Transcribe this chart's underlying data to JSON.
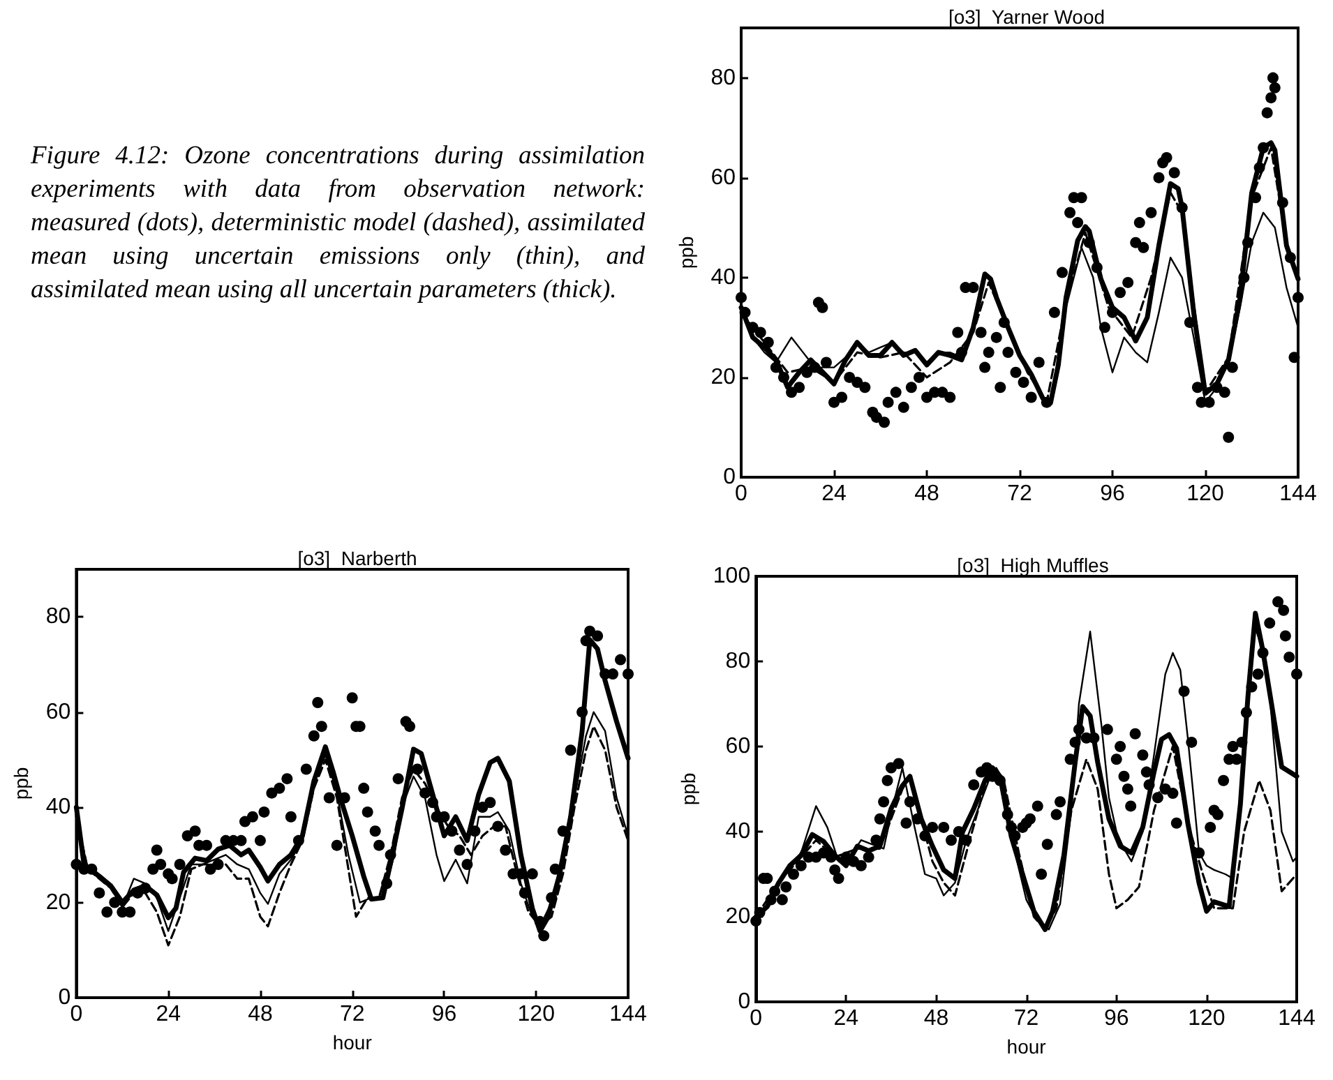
{
  "chart_data": [
    {
      "type": "line",
      "title": "[o3]  Yarner Wood",
      "ylabel": "ppb",
      "annotations": [
        "Figure 4.12: Ozone concentrations during assimilation experiments with data from observation network: measured (dots), deterministic model (dashed), assimilated mean using uncertain emissions only (thin), and assimilated mean using all uncertain parameters (thick)."
      ],
      "xlim": [
        0,
        144
      ],
      "xticks": [
        0,
        24,
        48,
        72,
        96,
        120,
        144
      ],
      "ylim": [
        0,
        90
      ],
      "yticks": [
        0,
        20,
        40,
        60,
        80
      ],
      "series": [
        {
          "type": "scatter",
          "marker": "circle",
          "color": "#000000",
          "x": [
            0,
            1,
            3,
            5,
            7,
            9,
            11,
            13,
            15,
            17,
            19,
            20,
            21,
            22,
            24,
            26,
            28,
            30,
            32,
            34,
            35,
            37,
            38,
            40,
            42,
            44,
            46,
            48,
            50,
            52,
            54,
            56,
            57,
            58,
            60,
            62,
            63,
            64,
            66,
            67,
            68,
            69,
            71,
            73,
            75,
            77,
            79,
            81,
            83,
            85,
            86,
            87,
            88,
            90,
            92,
            94,
            96,
            98,
            100,
            102,
            103,
            104,
            106,
            108,
            109,
            110,
            112,
            114,
            116,
            118,
            119,
            121,
            123,
            125,
            126,
            127,
            130,
            131,
            133,
            134,
            135,
            136,
            137,
            137.5,
            138,
            140,
            142,
            143,
            144
          ],
          "values": [
            36,
            33,
            30,
            29,
            27,
            22,
            20,
            17,
            18,
            21,
            22,
            35,
            34,
            23,
            15,
            16,
            20,
            19,
            18,
            13,
            12,
            11,
            15,
            17,
            14,
            18,
            20,
            16,
            17,
            17,
            16,
            29,
            25,
            38,
            38,
            29,
            22,
            25,
            28,
            18,
            31,
            25,
            21,
            19,
            16,
            23,
            15,
            33,
            41,
            53,
            56,
            51,
            56,
            47,
            42,
            30,
            33,
            37,
            39,
            47,
            51,
            46,
            53,
            60,
            63,
            64,
            61,
            54,
            31,
            18,
            15,
            15,
            18,
            17,
            8,
            22,
            40,
            47,
            56,
            62,
            66,
            73,
            76,
            80,
            78,
            55,
            44,
            24,
            36
          ]
        },
        {
          "type": "line",
          "line_style": "dashed",
          "color": "#000000",
          "x": [
            0,
            6,
            12,
            18,
            24,
            30,
            36,
            42,
            48,
            54,
            60,
            64,
            69,
            74,
            79,
            84,
            89,
            95,
            101,
            106,
            111,
            114,
            120,
            126,
            132,
            137,
            141,
            144
          ],
          "values": [
            33,
            27,
            21,
            22,
            19,
            25,
            24,
            25,
            20,
            23,
            29,
            39,
            30,
            21,
            15,
            35,
            49,
            34,
            28,
            40,
            57,
            53,
            17,
            24,
            56,
            66,
            47,
            40
          ]
        },
        {
          "type": "line",
          "color": "#000000",
          "x": [
            0,
            3,
            6,
            9,
            13,
            16,
            19,
            24,
            27,
            30,
            33,
            36,
            39,
            42,
            45,
            48,
            51,
            54,
            57,
            60,
            63,
            64.5,
            66,
            69,
            72,
            75,
            78,
            80,
            82,
            84,
            88,
            91,
            93,
            96,
            99,
            102,
            105,
            108,
            111,
            114,
            117,
            120,
            123,
            126,
            129,
            132,
            135,
            138,
            141,
            144
          ],
          "values": [
            33,
            28,
            25,
            23,
            28,
            25,
            22,
            22,
            24,
            27,
            25,
            26,
            27,
            25,
            25,
            23,
            25,
            25,
            24,
            30,
            40,
            40,
            36,
            30,
            24,
            20,
            16,
            15,
            22,
            34,
            46,
            40,
            30,
            21,
            28,
            25,
            23,
            33,
            44,
            40,
            28,
            15,
            18,
            23,
            34,
            47,
            53,
            50,
            38,
            30
          ]
        },
        {
          "type": "line",
          "color": "#000000",
          "x": [
            0,
            3,
            6,
            9,
            12,
            15,
            18,
            24,
            27,
            30,
            33,
            36,
            39,
            42,
            45,
            48,
            51,
            54,
            57,
            60,
            63,
            64.5,
            66,
            69,
            72,
            75,
            78,
            80,
            82,
            84,
            87,
            89,
            90,
            93,
            96,
            99,
            102,
            105,
            108,
            111,
            113,
            114,
            117,
            120,
            123,
            126,
            129,
            132,
            135,
            137,
            138,
            141,
            144
          ],
          "values": [
            34,
            28,
            26,
            23.5,
            18,
            21,
            23.5,
            18.7,
            23.5,
            27,
            24.4,
            24.4,
            27,
            24.4,
            25.4,
            22.5,
            25,
            24.4,
            23.5,
            30,
            40.7,
            39.7,
            36,
            30,
            24.4,
            20.6,
            15.8,
            14.9,
            22.5,
            36,
            47.4,
            50.2,
            49.3,
            39.7,
            34,
            32,
            27.3,
            32,
            46.4,
            58.8,
            57.8,
            54,
            33,
            16.8,
            18.7,
            23.5,
            36,
            56.9,
            66,
            67,
            65.5,
            46.4,
            39.7
          ]
        }
      ]
    },
    {
      "type": "line",
      "title": "[o3]  Narberth",
      "xlabel": "hour",
      "ylabel": "ppb",
      "xlim": [
        0,
        144
      ],
      "xticks": [
        0,
        24,
        48,
        72,
        96,
        120,
        144
      ],
      "ylim": [
        0,
        90
      ],
      "yticks": [
        0,
        20,
        40,
        60,
        80
      ],
      "series": [
        {
          "type": "scatter",
          "marker": "circle",
          "color": "#000000",
          "x": [
            0,
            2,
            4,
            6,
            8,
            10,
            12,
            14,
            16,
            18,
            20,
            21,
            22,
            24,
            25,
            27,
            29,
            31,
            32,
            34,
            35,
            37,
            39,
            41,
            43,
            44,
            46,
            48,
            49,
            51,
            53,
            55,
            56,
            58,
            60,
            62,
            63,
            64,
            66,
            68,
            70,
            72,
            73,
            74,
            75,
            76,
            78,
            79,
            81,
            82,
            84,
            86,
            87,
            89,
            91,
            93,
            94,
            96,
            98,
            100,
            102,
            104,
            106,
            108,
            110,
            112,
            114,
            116,
            117,
            119,
            121,
            122,
            124,
            125,
            127,
            129,
            132,
            133,
            134,
            136,
            138,
            140,
            142,
            144
          ],
          "values": [
            28,
            27,
            27,
            22,
            18,
            20,
            18,
            18,
            22,
            23,
            27,
            31,
            28,
            26,
            25,
            28,
            34,
            35,
            32,
            32,
            27,
            28,
            33,
            33,
            33,
            37,
            38,
            33,
            39,
            43,
            44,
            46,
            38,
            33,
            48,
            55,
            62,
            57,
            42,
            32,
            42,
            63,
            57,
            57,
            44,
            39,
            35,
            32,
            24,
            30,
            46,
            58,
            57,
            48,
            43,
            41,
            38,
            38,
            35,
            31,
            28,
            35,
            40,
            41,
            36,
            31,
            26,
            26,
            22,
            26,
            16,
            13,
            21,
            27,
            35,
            52,
            60,
            75,
            77,
            76,
            68,
            68,
            71,
            68
          ]
        },
        {
          "type": "line",
          "line_style": "dashed",
          "color": "#000000",
          "x": [
            0,
            3,
            6,
            9,
            12,
            15,
            18,
            21,
            24,
            27,
            30,
            33,
            36,
            39,
            42,
            45,
            48,
            50,
            53,
            56,
            59,
            62,
            65,
            68,
            71,
            73,
            76,
            79,
            82,
            85,
            88,
            91,
            94,
            97,
            100,
            103,
            106,
            109,
            112,
            115,
            118,
            121,
            124,
            127,
            130,
            133,
            135,
            138,
            141,
            144
          ],
          "values": [
            38,
            27,
            25,
            23,
            19,
            22,
            22,
            18,
            11,
            17,
            27,
            28,
            28,
            28,
            25,
            25,
            17,
            15,
            22,
            28,
            33,
            44,
            50,
            42,
            27,
            17,
            21,
            21,
            30,
            42,
            48,
            45,
            40,
            36,
            34,
            30,
            34,
            36,
            36,
            26,
            18,
            15,
            17,
            26,
            40,
            52,
            57,
            52,
            40,
            33
          ]
        },
        {
          "type": "line",
          "color": "#000000",
          "x": [
            0,
            3,
            6,
            9,
            12,
            15,
            18,
            21,
            24,
            27,
            30,
            33,
            36,
            39,
            42,
            45,
            48,
            50,
            53,
            56,
            59,
            62,
            65,
            68,
            71,
            74,
            77,
            80,
            83,
            85,
            88,
            91,
            94,
            96,
            99,
            102,
            105,
            108,
            110,
            113,
            116,
            119,
            121,
            124,
            127,
            130,
            133,
            135,
            138,
            141,
            144
          ],
          "values": [
            38,
            27,
            25,
            23,
            19,
            25,
            24,
            21,
            14,
            21,
            28,
            28,
            29,
            30,
            28,
            27,
            22,
            19.7,
            26,
            29,
            33,
            45,
            51,
            43,
            30,
            20,
            21,
            21,
            30,
            40,
            46.5,
            42,
            30,
            24.5,
            29,
            24,
            38,
            38,
            39,
            35,
            24,
            17,
            15,
            20,
            28,
            42,
            55,
            60,
            56,
            42,
            34
          ]
        },
        {
          "type": "line",
          "color": "#000000",
          "x": [
            0,
            2,
            6,
            9,
            12,
            15,
            18,
            21,
            24,
            26,
            28,
            31,
            34,
            37,
            40,
            43,
            45,
            48,
            50,
            53,
            56,
            59,
            62,
            65,
            67,
            69,
            72,
            75,
            77,
            80,
            82,
            85,
            88,
            90,
            93,
            96,
            99,
            102,
            105,
            108,
            110,
            113,
            116,
            119,
            121,
            123,
            126,
            129,
            132,
            134,
            136,
            138,
            141,
            144
          ],
          "values": [
            40,
            28,
            25.5,
            23.5,
            20,
            22.6,
            23.5,
            21.6,
            16.8,
            18.8,
            26.4,
            29.3,
            28.8,
            31.2,
            32,
            30,
            31,
            27.4,
            24.5,
            28,
            30,
            34,
            45.5,
            52.7,
            47.5,
            41.7,
            34,
            25.5,
            20.7,
            21,
            28.3,
            39.8,
            52.2,
            51.3,
            42.7,
            34,
            38,
            33,
            42.7,
            49.4,
            50.3,
            45.5,
            30,
            18.8,
            14,
            16.8,
            25.5,
            38,
            56,
            75.2,
            73.3,
            66.6,
            58,
            50.3
          ]
        }
      ]
    },
    {
      "type": "line",
      "title": "[o3]  High Muffles",
      "xlabel": "hour",
      "ylabel": "ppb",
      "xlim": [
        0,
        144
      ],
      "xticks": [
        0,
        24,
        48,
        72,
        96,
        120,
        144
      ],
      "ylim": [
        0,
        100
      ],
      "yticks": [
        0,
        20,
        40,
        60,
        80,
        100
      ],
      "series": [
        {
          "type": "scatter",
          "marker": "circle",
          "color": "#000000",
          "x": [
            0,
            1,
            2,
            3,
            4,
            5,
            7,
            8,
            10,
            12,
            14,
            16,
            18,
            20,
            21,
            22,
            24,
            26,
            28,
            30,
            32,
            33,
            34,
            35,
            36,
            38,
            40,
            41,
            43,
            45,
            47,
            50,
            52,
            54,
            56,
            58,
            60,
            61.5,
            63,
            65,
            67,
            68,
            69,
            71,
            72,
            73,
            75,
            76,
            77.6,
            80,
            81,
            83.7,
            85,
            86,
            88,
            90,
            93.6,
            96,
            97,
            98,
            99,
            99.8,
            101,
            103,
            104,
            104.7,
            107,
            109,
            111,
            112,
            114,
            116,
            118,
            121,
            122,
            123,
            124.5,
            126,
            127,
            128,
            129.4,
            130.6,
            132,
            133.7,
            135,
            136.8,
            139,
            140.5,
            141,
            142,
            144
          ],
          "values": [
            19,
            21,
            29,
            29,
            24,
            26,
            24,
            27,
            30,
            32,
            34,
            34,
            35,
            34,
            31,
            29,
            34,
            33,
            32,
            34,
            38,
            43,
            47,
            52,
            55,
            56,
            42,
            47,
            43,
            39,
            41,
            41,
            38,
            40,
            38,
            51,
            54,
            55,
            53,
            52,
            44,
            41,
            39,
            41,
            42,
            43,
            46,
            30,
            37,
            44,
            47,
            57,
            61,
            64,
            62,
            62,
            64,
            57,
            60,
            53,
            50,
            46,
            63,
            58,
            54,
            51,
            48,
            50,
            49,
            42,
            73,
            61,
            35,
            41,
            45,
            44,
            52,
            57,
            60,
            57,
            61,
            68,
            74,
            77,
            82,
            89,
            94,
            92,
            86,
            81,
            77
          ]
        },
        {
          "type": "line",
          "line_style": "dashed",
          "color": "#000000",
          "x": [
            0,
            6,
            12,
            16,
            21,
            27,
            33,
            39,
            41,
            44,
            47,
            50,
            53,
            56,
            61,
            63,
            66,
            70,
            74,
            77,
            80,
            84,
            88,
            91,
            94,
            96,
            99,
            102,
            106,
            111,
            115,
            119,
            122,
            127,
            130,
            134,
            137,
            140,
            144
          ],
          "values": [
            20,
            28,
            34,
            38,
            34,
            36,
            36,
            50,
            53,
            43,
            33,
            28,
            25,
            35,
            51,
            54,
            52,
            35,
            20,
            17,
            22,
            45,
            57,
            50,
            30,
            22,
            24,
            27,
            45,
            60,
            42,
            30,
            22,
            22,
            40,
            52,
            45,
            26,
            30
          ]
        },
        {
          "type": "line",
          "color": "#000000",
          "x": [
            0,
            3,
            6,
            9,
            12,
            16,
            19,
            22,
            25,
            28,
            31,
            34,
            37,
            39,
            42,
            45,
            48,
            50,
            53,
            56,
            59,
            62,
            64,
            66,
            69,
            72,
            75,
            78,
            81,
            84,
            86,
            89,
            92,
            94,
            96,
            98,
            100,
            103,
            106,
            109,
            111,
            113,
            115,
            118,
            120,
            122,
            125,
            127,
            129,
            131,
            133,
            135,
            137,
            140,
            143,
            144
          ],
          "values": [
            20,
            22,
            28,
            32,
            35,
            46,
            41,
            33,
            34,
            38,
            37,
            36,
            48,
            55,
            42,
            30,
            29,
            25,
            28,
            38,
            45,
            52,
            55,
            52,
            35,
            24,
            19,
            17,
            23,
            45,
            70,
            87,
            65,
            48,
            40,
            36,
            33,
            40,
            58,
            77,
            82,
            78,
            62,
            35,
            32,
            31,
            30,
            29,
            45,
            70,
            88,
            82,
            70,
            40,
            33,
            34
          ]
        },
        {
          "type": "line",
          "color": "#000000",
          "x": [
            0,
            3,
            6,
            9,
            12,
            15,
            18,
            21,
            24,
            27,
            30,
            33,
            36,
            39,
            41,
            44,
            47,
            50,
            53,
            55,
            58,
            61,
            63,
            65,
            68,
            71,
            74,
            77,
            79,
            82,
            85,
            87,
            89,
            91,
            94,
            97,
            100,
            103,
            106,
            108,
            110,
            112,
            115,
            118,
            120,
            122,
            126,
            129,
            131,
            133,
            135,
            137,
            140,
            144
          ],
          "values": [
            20,
            22.4,
            27.9,
            32,
            34.4,
            39.3,
            37.7,
            34.4,
            32,
            36.6,
            35.5,
            36.6,
            45.4,
            50.8,
            53,
            43,
            36.6,
            31,
            29,
            39.9,
            45.4,
            52,
            55,
            53,
            38.8,
            30,
            21.3,
            17,
            21.3,
            34.4,
            56.3,
            69.4,
            67.2,
            56.3,
            43,
            36.6,
            35,
            41,
            54,
            61.7,
            62.8,
            59.6,
            42,
            27.9,
            21.3,
            23.5,
            22.4,
            46.4,
            71.6,
            91.3,
            82.5,
            71.6,
            55.2,
            53
          ]
        }
      ]
    }
  ]
}
